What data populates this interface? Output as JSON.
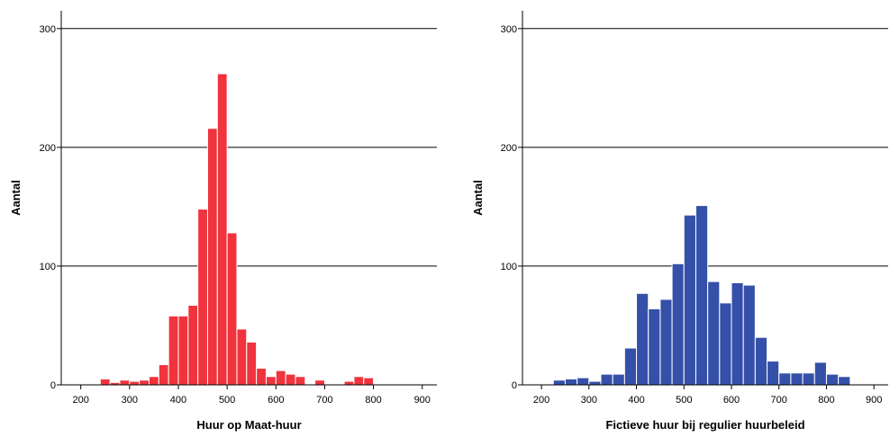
{
  "chart_data": [
    {
      "type": "bar",
      "subtype": "histogram",
      "title": "",
      "xlabel": "Huur op Maat-huur",
      "ylabel": "Aantal",
      "xlim": [
        160,
        930
      ],
      "ylim": [
        0,
        315
      ],
      "x_ticks": [
        200,
        300,
        400,
        500,
        600,
        700,
        800,
        900
      ],
      "y_ticks": [
        0,
        100,
        200,
        300
      ],
      "grid": "horizontal",
      "bar_color": "#f0333c",
      "bin_width": 20,
      "bin_starts": [
        180,
        200,
        220,
        240,
        260,
        280,
        300,
        320,
        340,
        360,
        380,
        400,
        420,
        440,
        460,
        480,
        500,
        520,
        540,
        560,
        580,
        600,
        620,
        640,
        660,
        680,
        700,
        720,
        740,
        760,
        780,
        800
      ],
      "values": [
        0,
        0,
        0,
        5,
        2,
        4,
        3,
        4,
        7,
        17,
        58,
        58,
        67,
        148,
        216,
        262,
        128,
        47,
        36,
        14,
        7,
        12,
        9,
        7,
        0,
        4,
        0,
        0,
        3,
        7,
        6,
        0
      ]
    },
    {
      "type": "bar",
      "subtype": "histogram",
      "title": "",
      "xlabel": "Fictieve huur bij regulier huurbeleid",
      "ylabel": "Aantal",
      "xlim": [
        160,
        930
      ],
      "ylim": [
        0,
        315
      ],
      "x_ticks": [
        200,
        300,
        400,
        500,
        600,
        700,
        800,
        900
      ],
      "y_ticks": [
        0,
        100,
        200,
        300
      ],
      "grid": "horizontal",
      "bar_color": "#3550a8",
      "bin_width": 25,
      "bin_starts": [
        175,
        200,
        225,
        250,
        275,
        300,
        325,
        350,
        375,
        400,
        425,
        450,
        475,
        500,
        525,
        550,
        575,
        600,
        625,
        650,
        675,
        700,
        725,
        750,
        775,
        800,
        825
      ],
      "values": [
        0,
        0,
        4,
        5,
        6,
        3,
        9,
        9,
        31,
        77,
        64,
        72,
        102,
        143,
        151,
        87,
        69,
        86,
        84,
        40,
        20,
        10,
        10,
        10,
        19,
        9,
        7
      ]
    }
  ]
}
